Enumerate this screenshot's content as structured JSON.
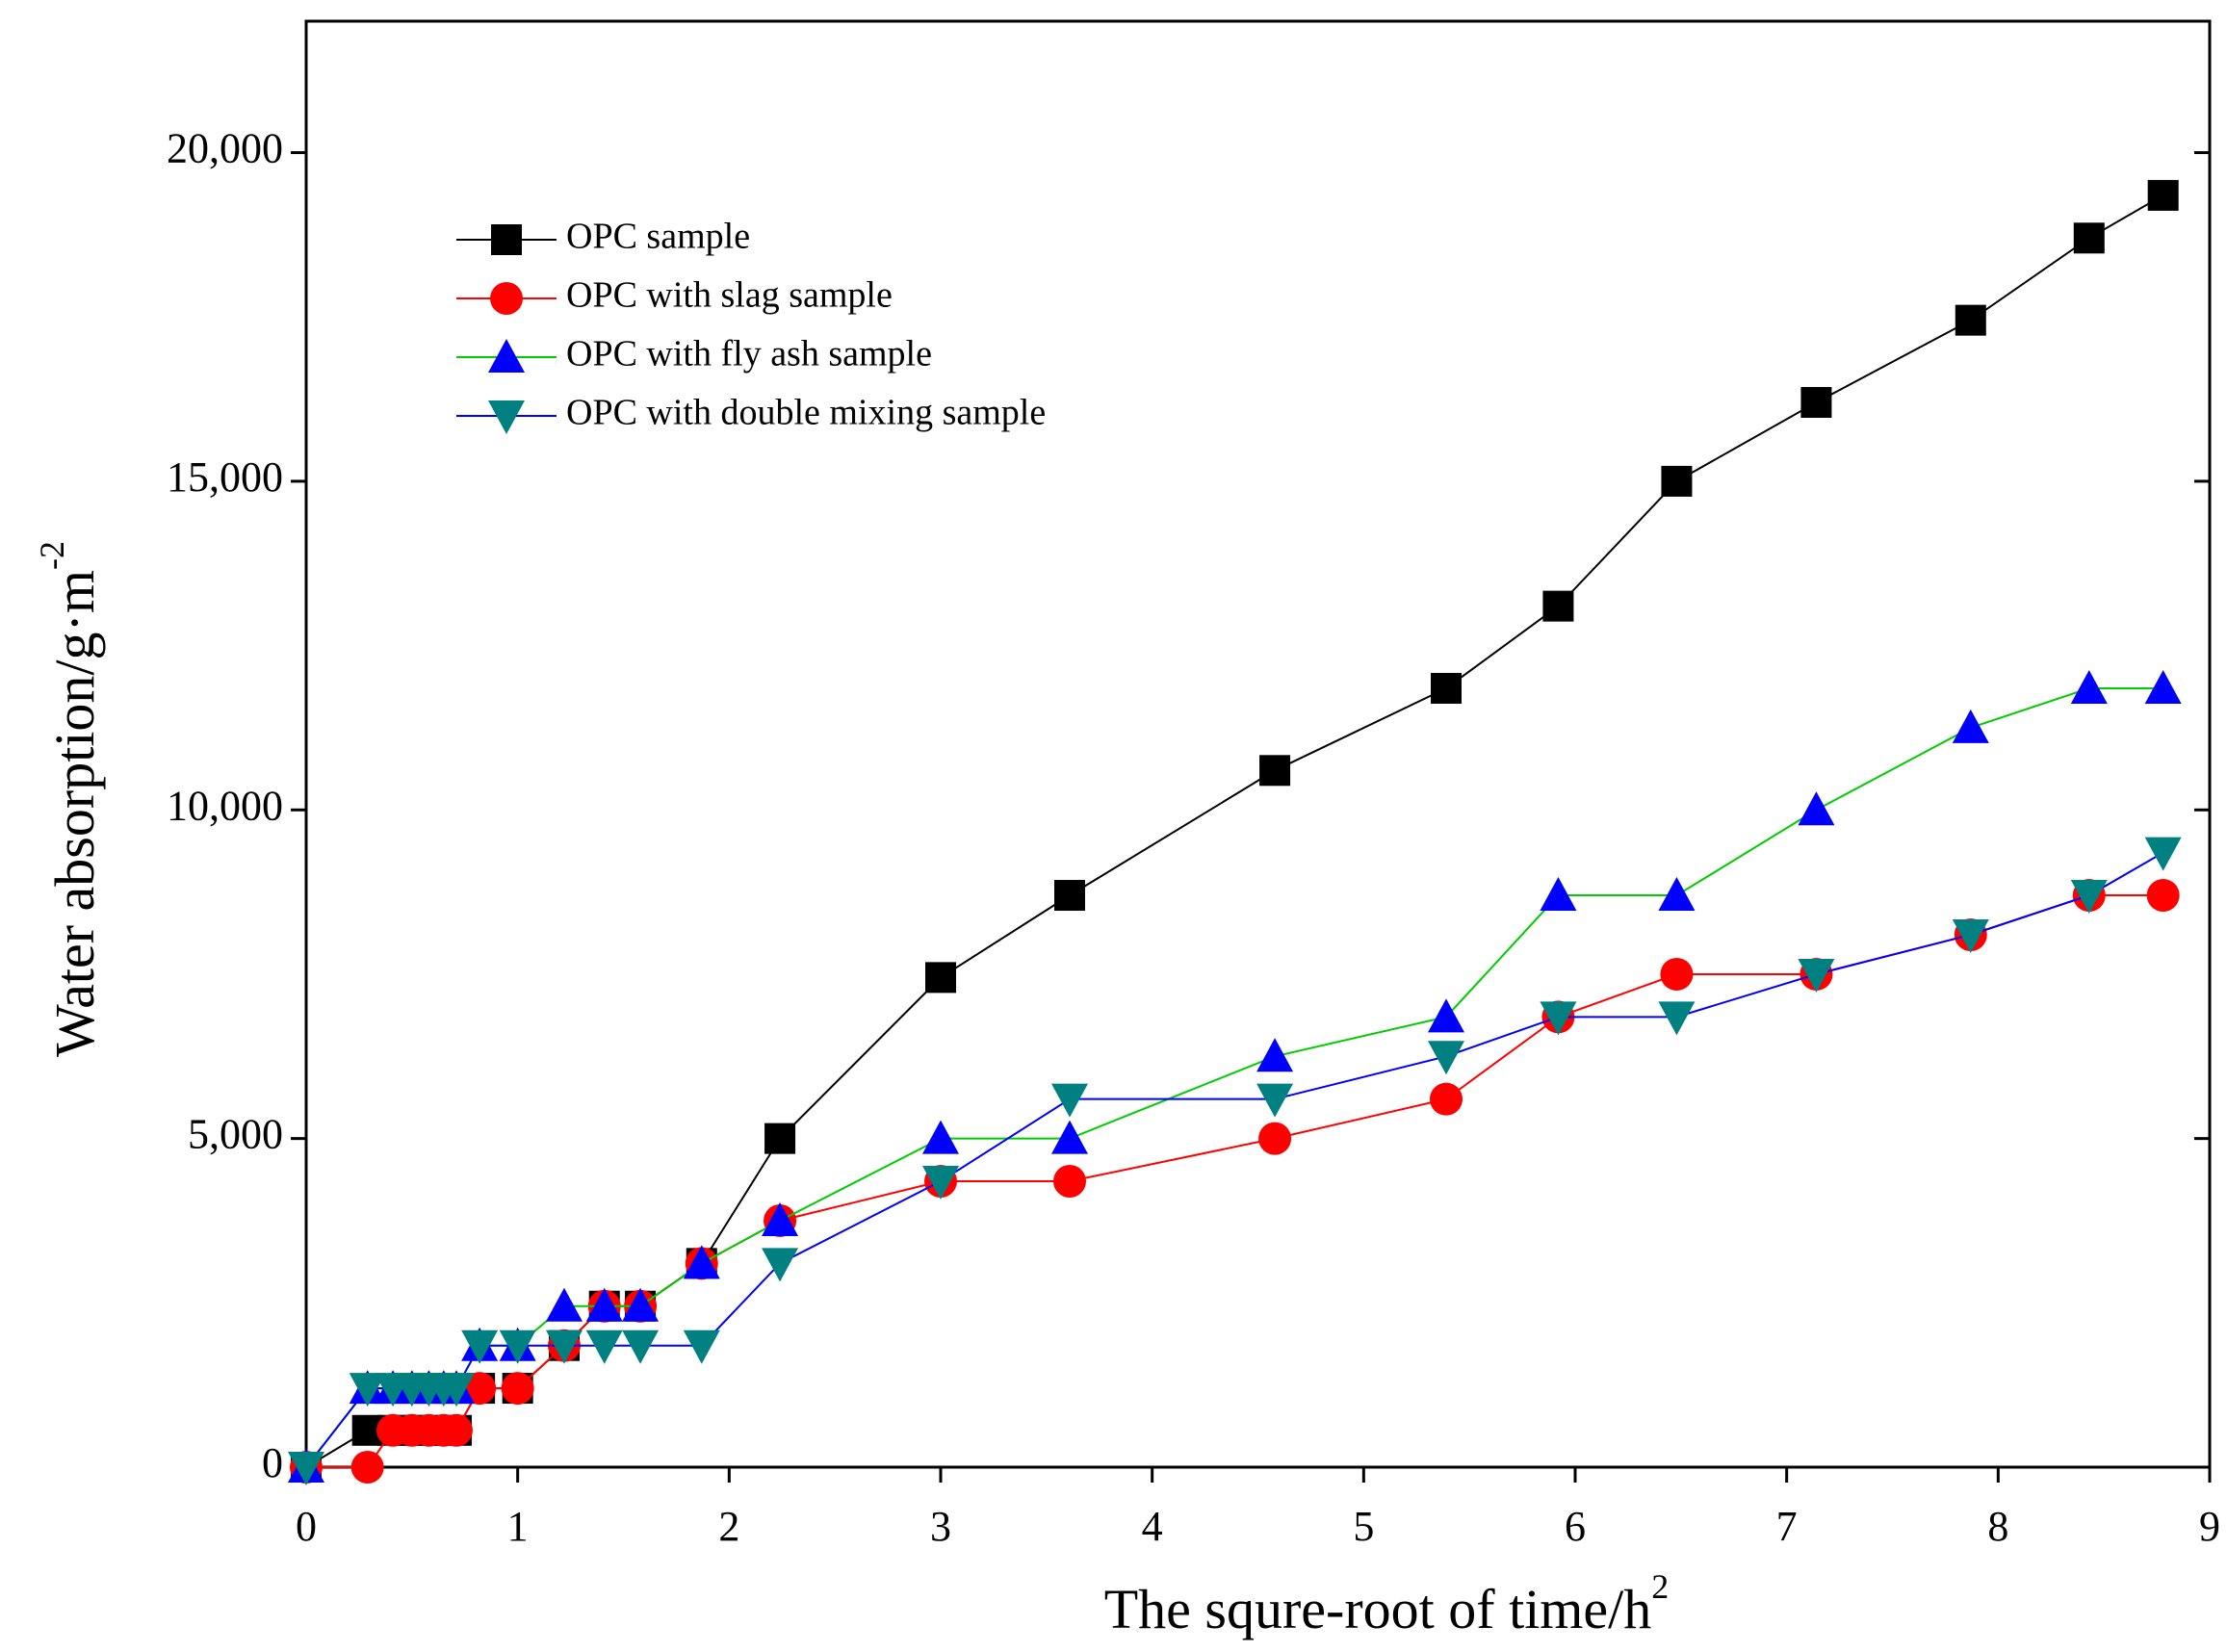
{
  "chart_data": {
    "type": "line",
    "x_label": "The squre-root of time/h",
    "x_label_sup": "2",
    "y_label": "Water absorption/g·m",
    "y_label_sup": "-2",
    "xlim": [
      0,
      9
    ],
    "xticks": [
      0,
      1,
      2,
      3,
      4,
      5,
      6,
      7,
      8,
      9
    ],
    "ylim": [
      0,
      22000
    ],
    "yticks": [
      0,
      {
        "value": 5000,
        "label": "5,000"
      },
      {
        "value": 10000,
        "label": "10,000"
      },
      {
        "value": 15000,
        "label": "15,000"
      },
      {
        "value": 20000,
        "label": "20,000"
      }
    ],
    "legend": "upper left",
    "x": [
      0,
      0.29,
      0.41,
      0.5,
      0.58,
      0.65,
      0.71,
      0.82,
      1.0,
      1.22,
      1.41,
      1.58,
      1.87,
      2.24,
      3.0,
      3.61,
      4.58,
      5.39,
      5.92,
      6.48,
      7.14,
      7.87,
      8.43,
      8.78
    ],
    "series": [
      {
        "name": "OPC sample",
        "color": "#000000",
        "line_color": "#000000",
        "marker": "square",
        "values": [
          0,
          560,
          560,
          560,
          560,
          560,
          560,
          1200,
          1200,
          1850,
          2450,
          2450,
          3100,
          5000,
          7450,
          8700,
          10600,
          11850,
          13100,
          15000,
          16200,
          17450,
          18700,
          19350
        ]
      },
      {
        "name": "OPC with slag sample",
        "color": "#ff0000",
        "line_color": "#ff0000",
        "marker": "circle",
        "values": [
          0,
          0,
          560,
          560,
          560,
          560,
          560,
          1200,
          1200,
          1850,
          2450,
          2450,
          3100,
          3750,
          4350,
          4350,
          5000,
          5600,
          6850,
          7500,
          7500,
          8100,
          8700,
          8700
        ]
      },
      {
        "name": "OPC with fly ash sample",
        "color": "#0000ff",
        "line_color": "#00cc00",
        "marker": "triangle-up",
        "values": [
          0,
          1200,
          1200,
          1200,
          1200,
          1200,
          1200,
          1850,
          1850,
          2450,
          2450,
          2450,
          3100,
          3750,
          5000,
          5000,
          6250,
          6850,
          8700,
          8700,
          10000,
          11250,
          11850,
          11850
        ]
      },
      {
        "name": "OPC with double mixing sample",
        "color": "#008080",
        "line_color": "#0000ff",
        "marker": "triangle-down",
        "values": [
          0,
          1200,
          1200,
          1200,
          1200,
          1200,
          1200,
          1850,
          1850,
          1850,
          1850,
          1850,
          1850,
          3100,
          4350,
          5600,
          5600,
          6250,
          6850,
          6850,
          7500,
          8100,
          8700,
          9350
        ]
      }
    ]
  }
}
